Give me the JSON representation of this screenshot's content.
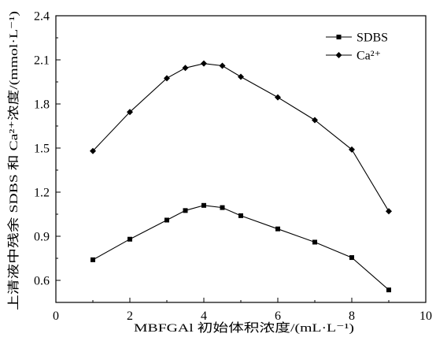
{
  "chart_data": {
    "type": "line",
    "xlabel": "MBFGAl 初始体积浓度/(mL·L⁻¹)",
    "ylabel": "上清液中残余 SDBS 和 Ca²⁺浓度/(mmol·L⁻¹)",
    "xlim": [
      0,
      10
    ],
    "ylim": [
      0.45,
      2.4
    ],
    "x_ticks": [
      "0",
      "2",
      "4",
      "6",
      "8",
      "10"
    ],
    "y_ticks": [
      "0.6",
      "0.9",
      "1.2",
      "1.5",
      "1.8",
      "2.1",
      "2.4"
    ],
    "grid": false,
    "legend_position": "top-right",
    "series": [
      {
        "name": "SDBS",
        "marker": "square",
        "color": "#000000",
        "points": [
          [
            1,
            0.74
          ],
          [
            2,
            0.88
          ],
          [
            3,
            1.01
          ],
          [
            3.5,
            1.075
          ],
          [
            4,
            1.11
          ],
          [
            4.5,
            1.095
          ],
          [
            5,
            1.04
          ],
          [
            6,
            0.95
          ],
          [
            7,
            0.86
          ],
          [
            8,
            0.755
          ],
          [
            9,
            0.535
          ]
        ]
      },
      {
        "name": "Ca²⁺",
        "marker": "diamond",
        "color": "#000000",
        "points": [
          [
            1,
            1.48
          ],
          [
            2,
            1.745
          ],
          [
            3,
            1.975
          ],
          [
            3.5,
            2.045
          ],
          [
            4,
            2.075
          ],
          [
            4.5,
            2.06
          ],
          [
            5,
            1.985
          ],
          [
            6,
            1.845
          ],
          [
            7,
            1.69
          ],
          [
            8,
            1.49
          ],
          [
            9,
            1.07
          ]
        ]
      }
    ]
  }
}
